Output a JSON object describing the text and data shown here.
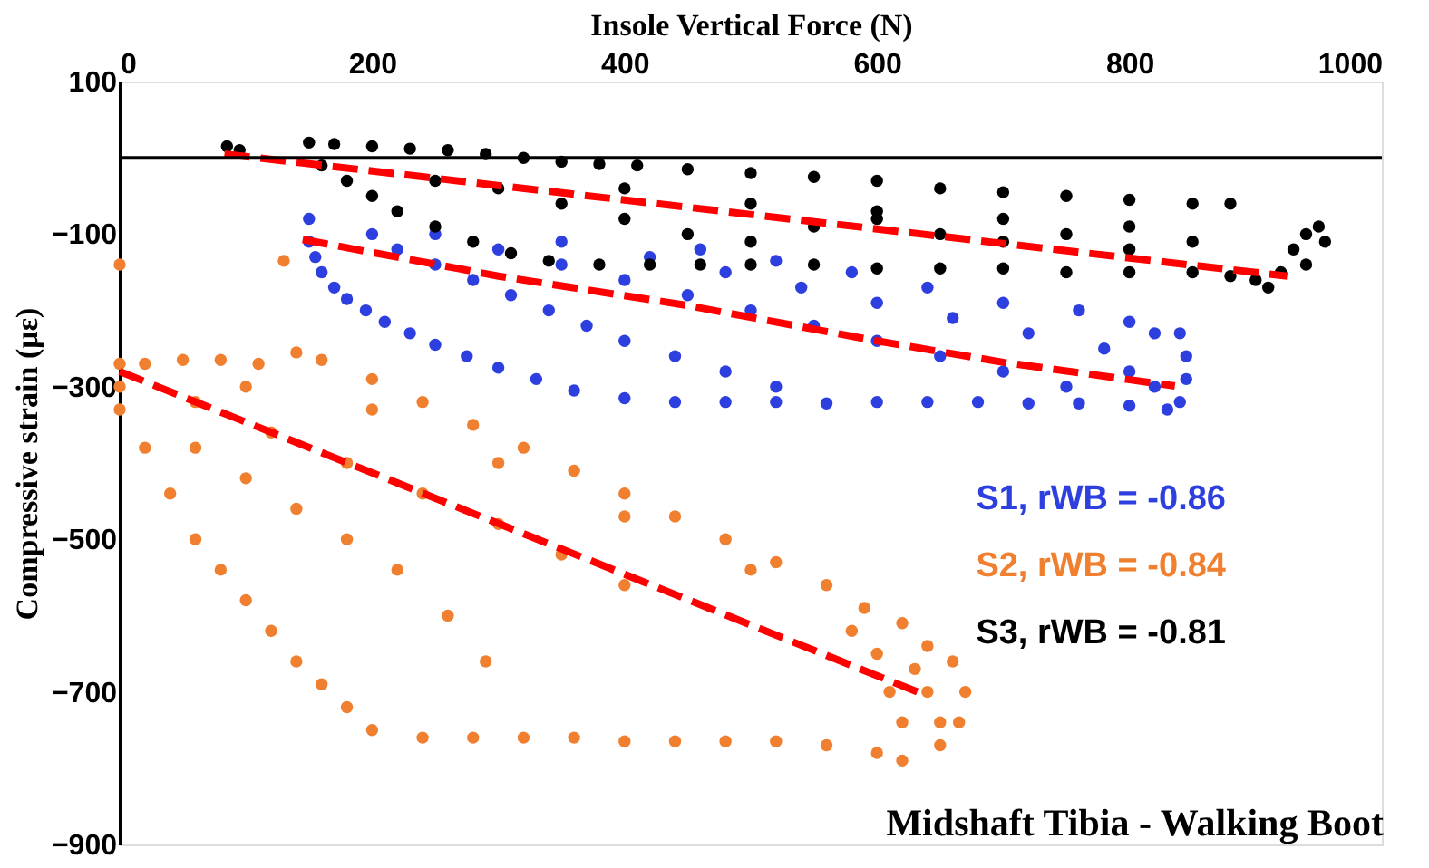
{
  "chart_data": {
    "type": "scatter",
    "title": "Midshaft Tibia - Walking Boot",
    "xlabel": "Insole Vertical Force (N)",
    "ylabel": "Compressive strain (με)",
    "xlim": [
      0,
      1000
    ],
    "xticks": [
      0,
      200,
      400,
      600,
      800,
      1000
    ],
    "ylim": [
      -900,
      100
    ],
    "yticks": [
      -900,
      -700,
      -500,
      -300,
      -100,
      100
    ],
    "grid": false,
    "legend": "bottom right",
    "ref_lines": [
      {
        "axis": "y",
        "value": 0,
        "color": "#000000"
      }
    ],
    "series": [
      {
        "name": "S1, rWB = -0.86",
        "color": "#2e3fe0",
        "marker": "circle",
        "x": [
          150,
          150,
          155,
          160,
          170,
          180,
          195,
          210,
          230,
          250,
          275,
          300,
          330,
          360,
          400,
          440,
          480,
          520,
          560,
          600,
          640,
          680,
          720,
          760,
          800,
          830,
          840,
          845,
          845,
          840,
          200,
          220,
          250,
          280,
          310,
          340,
          370,
          400,
          440,
          480,
          520,
          250,
          300,
          350,
          400,
          450,
          500,
          550,
          600,
          650,
          700,
          750,
          350,
          420,
          480,
          540,
          600,
          660,
          720,
          780,
          800,
          820,
          460,
          520,
          580,
          640,
          700,
          760,
          800,
          820
        ],
        "values": [
          -80,
          -110,
          -130,
          -150,
          -170,
          -185,
          -200,
          -215,
          -230,
          -245,
          -260,
          -275,
          -290,
          -305,
          -315,
          -320,
          -320,
          -320,
          -322,
          -320,
          -320,
          -320,
          -322,
          -322,
          -325,
          -330,
          -320,
          -290,
          -260,
          -230,
          -100,
          -120,
          -140,
          -160,
          -180,
          -200,
          -220,
          -240,
          -260,
          -280,
          -300,
          -100,
          -120,
          -140,
          -160,
          -180,
          -200,
          -220,
          -240,
          -260,
          -280,
          -300,
          -110,
          -130,
          -150,
          -170,
          -190,
          -210,
          -230,
          -250,
          -280,
          -300,
          -120,
          -135,
          -150,
          -170,
          -190,
          -200,
          -215,
          -230
        ]
      },
      {
        "name": "S2, rWB = -0.84",
        "color": "#f08030",
        "marker": "circle",
        "x": [
          0,
          130,
          0,
          0,
          0,
          20,
          50,
          80,
          110,
          140,
          160,
          200,
          240,
          280,
          320,
          360,
          400,
          440,
          480,
          520,
          560,
          590,
          620,
          640,
          660,
          670,
          665,
          650,
          620,
          600,
          560,
          520,
          480,
          440,
          400,
          360,
          320,
          280,
          240,
          200,
          180,
          160,
          140,
          120,
          100,
          80,
          60,
          40,
          20,
          60,
          100,
          140,
          180,
          220,
          260,
          290,
          60,
          120,
          180,
          240,
          300,
          350,
          400,
          600,
          610,
          620,
          640,
          650,
          630,
          580,
          100,
          200,
          300,
          400,
          500
        ],
        "values": [
          -140,
          -135,
          -270,
          -300,
          -330,
          -270,
          -265,
          -265,
          -270,
          -255,
          -265,
          -290,
          -320,
          -350,
          -380,
          -410,
          -440,
          -470,
          -500,
          -530,
          -560,
          -590,
          -610,
          -640,
          -660,
          -700,
          -740,
          -770,
          -790,
          -780,
          -770,
          -765,
          -765,
          -765,
          -765,
          -760,
          -760,
          -760,
          -760,
          -750,
          -720,
          -690,
          -660,
          -620,
          -580,
          -540,
          -500,
          -440,
          -380,
          -380,
          -420,
          -460,
          -500,
          -540,
          -600,
          -660,
          -320,
          -360,
          -400,
          -440,
          -480,
          -520,
          -560,
          -650,
          -700,
          -740,
          -700,
          -740,
          -670,
          -620,
          -300,
          -330,
          -400,
          -470,
          -540
        ]
      },
      {
        "name": "S3, rWB = -0.81",
        "color": "#000000",
        "marker": "circle",
        "x": [
          85,
          95,
          150,
          170,
          200,
          230,
          260,
          290,
          320,
          350,
          380,
          410,
          450,
          500,
          550,
          600,
          650,
          700,
          750,
          800,
          850,
          880,
          160,
          180,
          200,
          220,
          250,
          280,
          310,
          340,
          380,
          420,
          460,
          500,
          550,
          600,
          650,
          700,
          750,
          800,
          850,
          880,
          900,
          920,
          930,
          940,
          950,
          955,
          940,
          910,
          300,
          350,
          400,
          450,
          500,
          550,
          600,
          650,
          700,
          750,
          800,
          850,
          250,
          400,
          500,
          600,
          700,
          800
        ],
        "values": [
          15,
          10,
          20,
          18,
          15,
          12,
          10,
          5,
          0,
          -5,
          -8,
          -10,
          -15,
          -20,
          -25,
          -30,
          -40,
          -45,
          -50,
          -55,
          -60,
          -60,
          -10,
          -30,
          -50,
          -70,
          -90,
          -110,
          -125,
          -135,
          -140,
          -140,
          -140,
          -140,
          -140,
          -145,
          -145,
          -145,
          -150,
          -150,
          -150,
          -155,
          -160,
          -150,
          -120,
          -100,
          -90,
          -110,
          -140,
          -170,
          -40,
          -60,
          -80,
          -100,
          -110,
          -90,
          -80,
          -100,
          -110,
          -100,
          -120,
          -110,
          -30,
          -40,
          -60,
          -70,
          -80,
          -90
        ]
      },
      {
        "color": "#ff0000",
        "type": "line",
        "marker": "none",
        "line_style": "dashed",
        "x": [
          145,
          300,
          448,
          600,
          700,
          836
        ],
        "values": [
          -107,
          -155,
          -193,
          -240,
          -268,
          -299
        ]
      },
      {
        "color": "#ff0000",
        "type": "line",
        "marker": "none",
        "line_style": "dashed",
        "x": [
          0,
          632
        ],
        "values": [
          -280,
          -700
        ]
      },
      {
        "color": "#ff0000",
        "type": "line",
        "marker": "none",
        "line_style": "dashed",
        "x": [
          83,
          925
        ],
        "values": [
          5,
          -155
        ]
      }
    ]
  }
}
